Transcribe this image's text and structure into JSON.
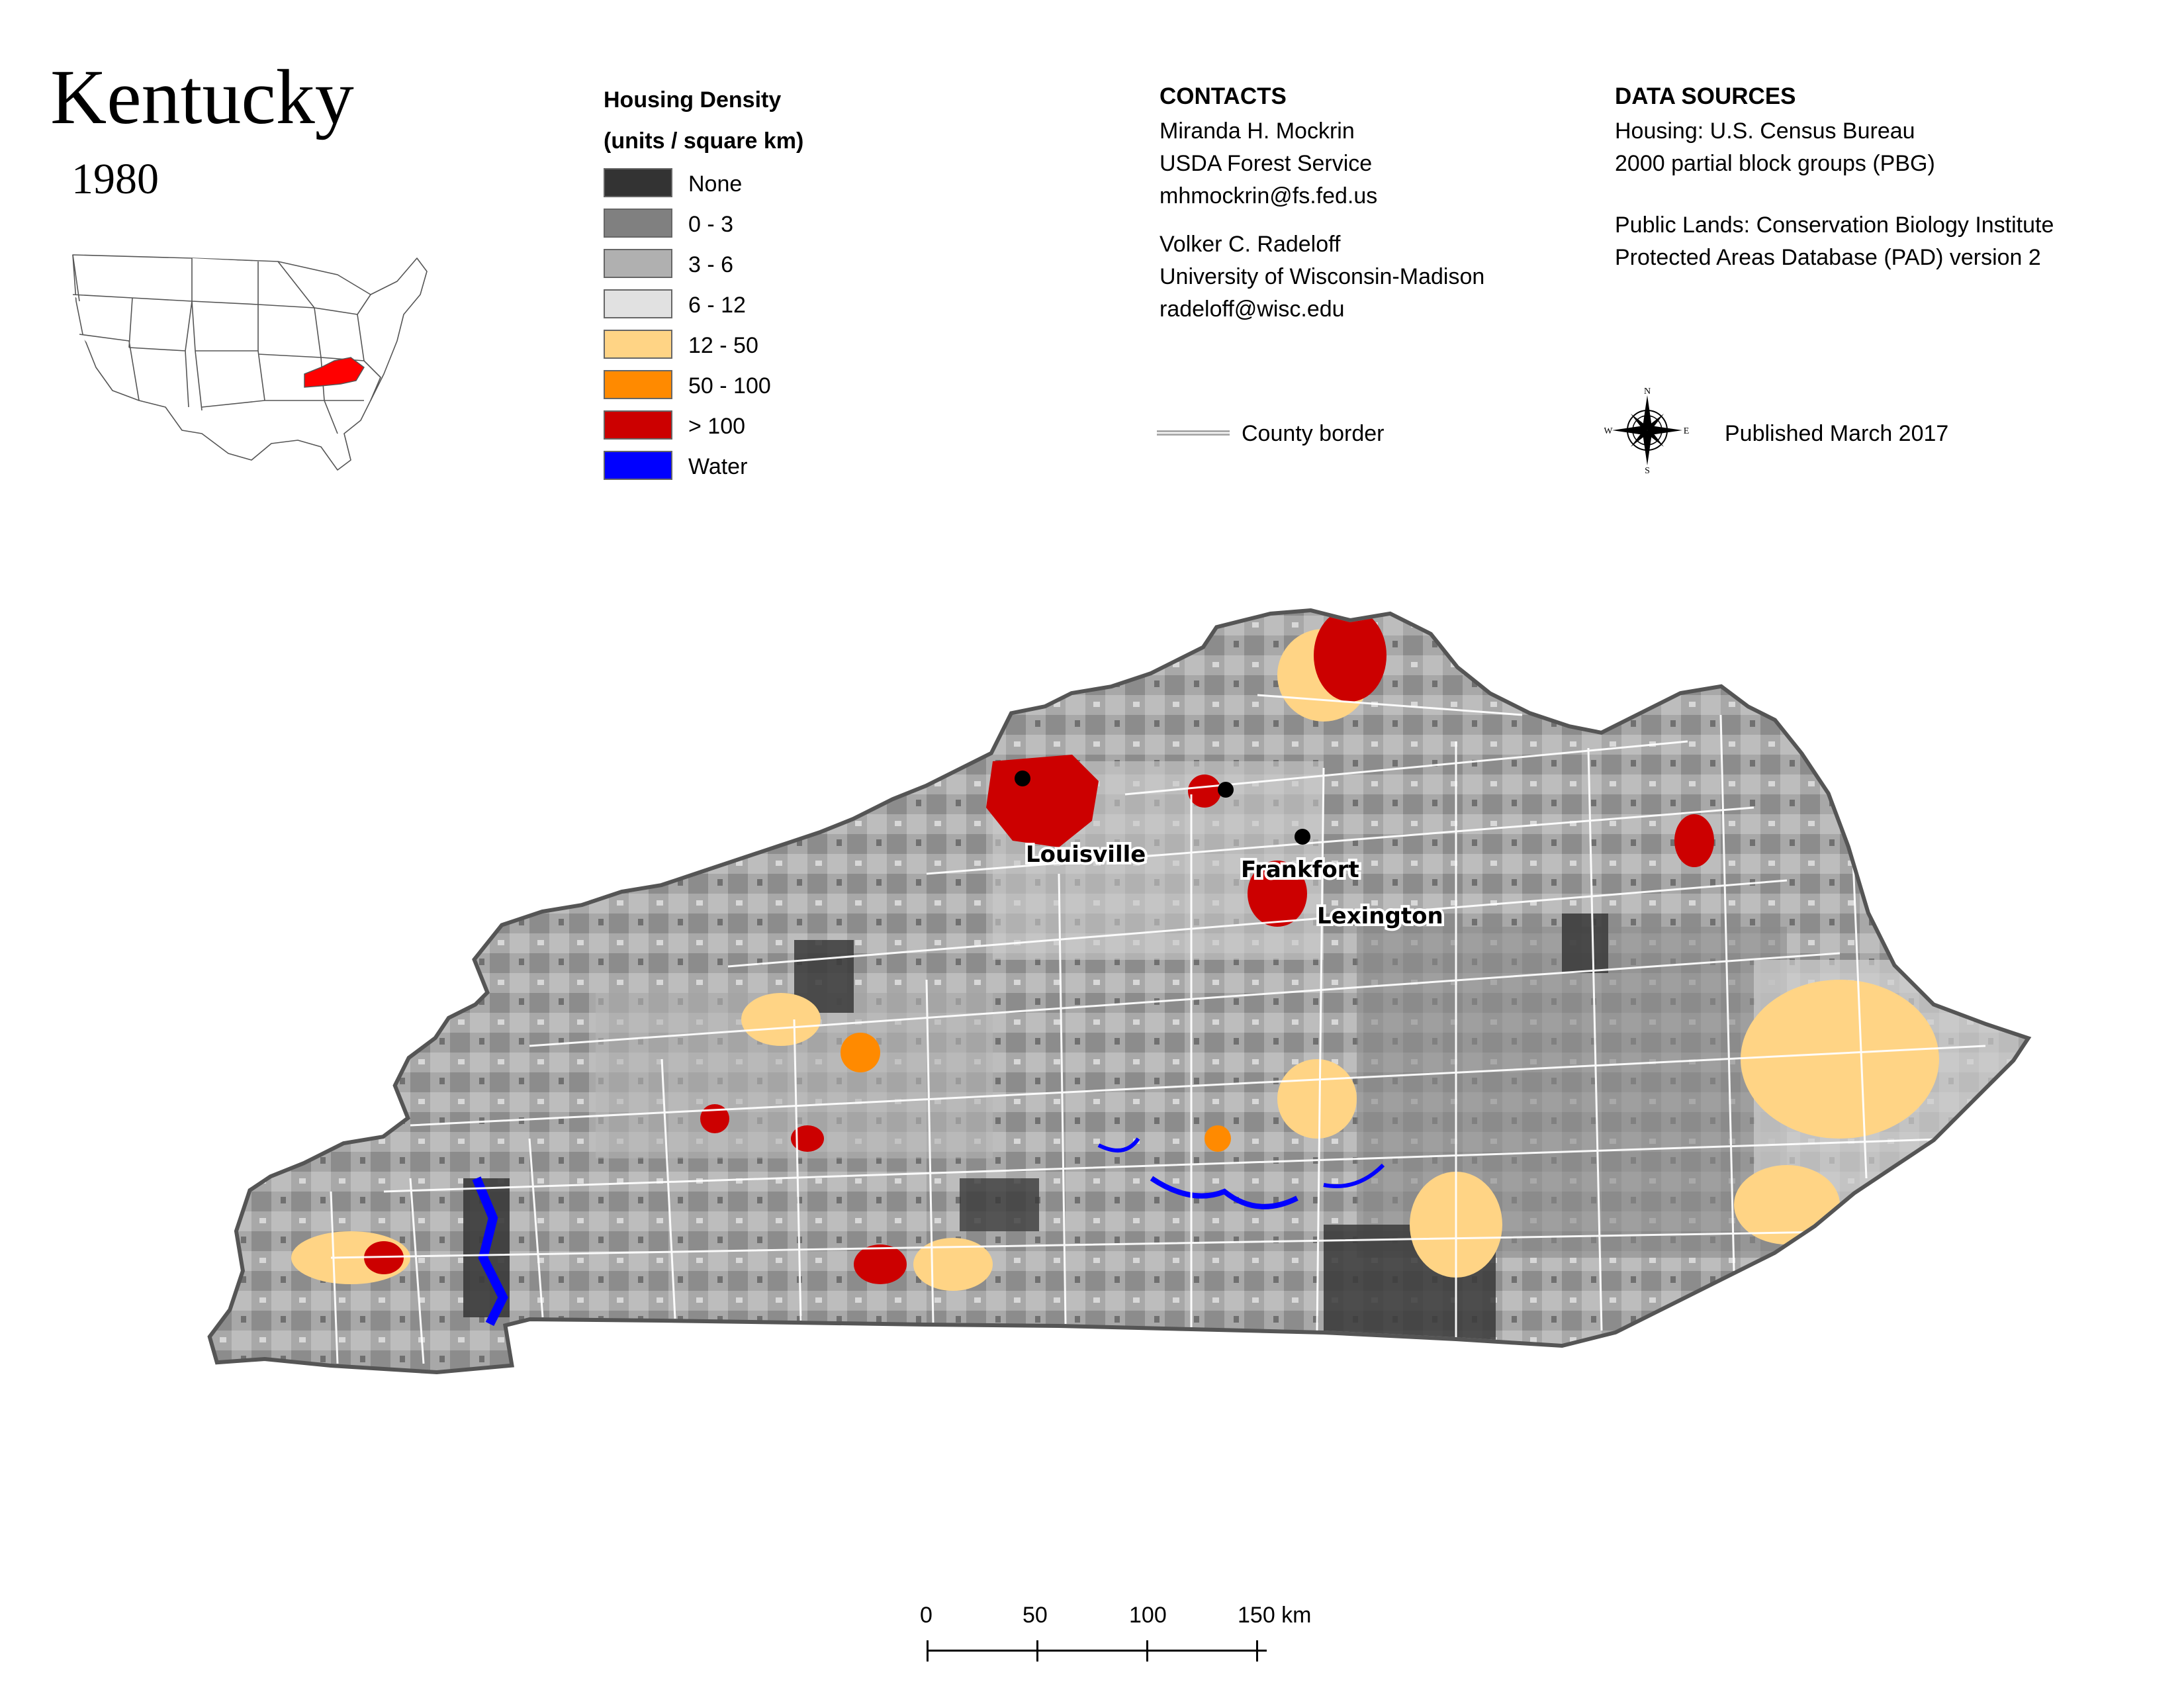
{
  "title": "Kentucky",
  "year": "1980",
  "legend": {
    "title_line1": "Housing Density",
    "title_line2": "(units / square km)",
    "items": [
      {
        "label": "None",
        "color": "#333333"
      },
      {
        "label": "0 - 3",
        "color": "#808080"
      },
      {
        "label": "3 - 6",
        "color": "#b0b0b0"
      },
      {
        "label": "6 - 12",
        "color": "#e1e1e1"
      },
      {
        "label": "12 - 50",
        "color": "#ffd485"
      },
      {
        "label": "50 - 100",
        "color": "#ff8a00"
      },
      {
        "label": "> 100",
        "color": "#cc0000"
      },
      {
        "label": "Water",
        "color": "#0000ff"
      }
    ]
  },
  "contacts": {
    "heading": "CONTACTS",
    "person1": {
      "name": "Miranda H. Mockrin",
      "org": "USDA Forest Service",
      "email": "mhmockrin@fs.fed.us"
    },
    "person2": {
      "name": "Volker C. Radeloff",
      "org": "University of Wisconsin-Madison",
      "email": "radeloff@wisc.edu"
    }
  },
  "sources": {
    "heading": "DATA SOURCES",
    "housing_line1": "Housing: U.S. Census Bureau",
    "housing_line2": "2000 partial block groups (PBG)",
    "lands_line1": "Public Lands: Conservation Biology Institute",
    "lands_line2": "Protected Areas Database (PAD) version 2"
  },
  "county_border_label": "County border",
  "compass": {
    "n": "N",
    "s": "S",
    "e": "E",
    "w": "W"
  },
  "published": "Published March 2017",
  "cities": [
    {
      "name": "Louisville"
    },
    {
      "name": "Frankfort"
    },
    {
      "name": "Lexington"
    }
  ],
  "scale": {
    "labels": [
      "0",
      "50",
      "100",
      "150 km"
    ]
  },
  "inset_highlight_color": "#ff0000"
}
